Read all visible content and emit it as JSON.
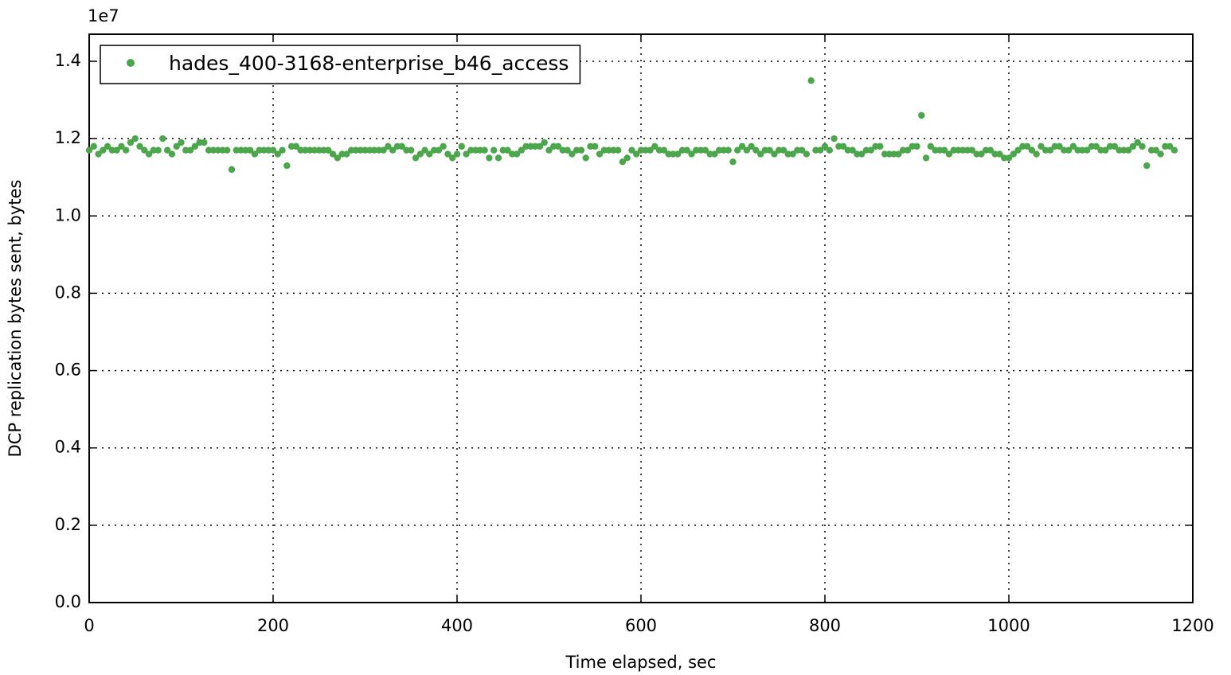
{
  "chart_data": {
    "type": "scatter",
    "x_label": "Time elapsed, sec",
    "y_label": "DCP replication bytes sent, bytes",
    "y_offset_label": "1e7",
    "xlim": [
      0,
      1200
    ],
    "xticks": [
      0,
      200,
      400,
      600,
      800,
      1000,
      1200
    ],
    "ylim": [
      0,
      1.47
    ],
    "yticks": [
      {
        "value": 0,
        "label": "0.0"
      },
      0.2,
      0.4,
      0.6,
      0.8,
      {
        "value": 1,
        "label": "1.0"
      },
      1.2,
      1.4
    ],
    "grid": true,
    "legend": "upper left",
    "series": [
      {
        "name": "hades_400-3168-enterprise_b46_access",
        "color": "#4ca64c",
        "x": [
          0,
          5,
          10,
          15,
          20,
          25,
          30,
          35,
          40,
          45,
          50,
          55,
          60,
          65,
          70,
          75,
          80,
          85,
          90,
          95,
          100,
          105,
          110,
          115,
          120,
          125,
          130,
          135,
          140,
          145,
          150,
          155,
          160,
          165,
          170,
          175,
          180,
          185,
          190,
          195,
          200,
          205,
          210,
          215,
          220,
          225,
          230,
          235,
          240,
          245,
          250,
          255,
          260,
          265,
          270,
          275,
          280,
          285,
          290,
          295,
          300,
          305,
          310,
          315,
          320,
          325,
          330,
          335,
          340,
          345,
          350,
          355,
          360,
          365,
          370,
          375,
          380,
          385,
          390,
          395,
          400,
          405,
          410,
          415,
          420,
          425,
          430,
          435,
          440,
          445,
          450,
          455,
          460,
          465,
          470,
          475,
          480,
          485,
          490,
          495,
          500,
          505,
          510,
          515,
          520,
          525,
          530,
          535,
          540,
          545,
          550,
          555,
          560,
          565,
          570,
          575,
          580,
          585,
          590,
          595,
          600,
          605,
          610,
          615,
          620,
          625,
          630,
          635,
          640,
          645,
          650,
          655,
          660,
          665,
          670,
          675,
          680,
          685,
          690,
          695,
          700,
          705,
          710,
          715,
          720,
          725,
          730,
          735,
          740,
          745,
          750,
          755,
          760,
          765,
          770,
          775,
          780,
          785,
          790,
          795,
          800,
          805,
          810,
          815,
          820,
          825,
          830,
          835,
          840,
          845,
          850,
          855,
          860,
          865,
          870,
          875,
          880,
          885,
          890,
          895,
          900,
          905,
          910,
          915,
          920,
          925,
          930,
          935,
          940,
          945,
          950,
          955,
          960,
          965,
          970,
          975,
          980,
          985,
          990,
          995,
          1000,
          1005,
          1010,
          1015,
          1020,
          1025,
          1030,
          1035,
          1040,
          1045,
          1050,
          1055,
          1060,
          1065,
          1070,
          1075,
          1080,
          1085,
          1090,
          1095,
          1100,
          1105,
          1110,
          1115,
          1120,
          1125,
          1130,
          1135,
          1140,
          1145,
          1150,
          1155,
          1160,
          1165,
          1170,
          1175,
          1180
        ],
        "values": [
          1.17,
          1.18,
          1.16,
          1.17,
          1.18,
          1.17,
          1.17,
          1.18,
          1.17,
          1.19,
          1.2,
          1.18,
          1.17,
          1.16,
          1.17,
          1.17,
          1.2,
          1.17,
          1.16,
          1.18,
          1.19,
          1.17,
          1.17,
          1.18,
          1.19,
          1.19,
          1.17,
          1.17,
          1.17,
          1.17,
          1.17,
          1.12,
          1.17,
          1.17,
          1.17,
          1.17,
          1.16,
          1.17,
          1.17,
          1.17,
          1.17,
          1.16,
          1.17,
          1.13,
          1.18,
          1.18,
          1.17,
          1.17,
          1.17,
          1.17,
          1.17,
          1.17,
          1.17,
          1.16,
          1.15,
          1.16,
          1.16,
          1.17,
          1.17,
          1.17,
          1.17,
          1.17,
          1.17,
          1.17,
          1.17,
          1.18,
          1.17,
          1.18,
          1.18,
          1.17,
          1.17,
          1.15,
          1.16,
          1.17,
          1.16,
          1.17,
          1.17,
          1.18,
          1.16,
          1.15,
          1.16,
          1.18,
          1.16,
          1.17,
          1.17,
          1.17,
          1.17,
          1.15,
          1.17,
          1.15,
          1.17,
          1.17,
          1.16,
          1.16,
          1.17,
          1.18,
          1.18,
          1.18,
          1.18,
          1.19,
          1.17,
          1.18,
          1.18,
          1.17,
          1.17,
          1.16,
          1.17,
          1.17,
          1.15,
          1.18,
          1.18,
          1.16,
          1.17,
          1.17,
          1.17,
          1.17,
          1.14,
          1.15,
          1.17,
          1.16,
          1.17,
          1.17,
          1.17,
          1.18,
          1.17,
          1.17,
          1.16,
          1.16,
          1.16,
          1.17,
          1.17,
          1.16,
          1.17,
          1.17,
          1.17,
          1.16,
          1.16,
          1.17,
          1.17,
          1.17,
          1.14,
          1.17,
          1.18,
          1.17,
          1.18,
          1.17,
          1.16,
          1.17,
          1.17,
          1.16,
          1.17,
          1.17,
          1.16,
          1.16,
          1.17,
          1.17,
          1.16,
          1.35,
          1.17,
          1.17,
          1.18,
          1.17,
          1.2,
          1.18,
          1.18,
          1.17,
          1.17,
          1.16,
          1.16,
          1.17,
          1.17,
          1.18,
          1.18,
          1.16,
          1.16,
          1.16,
          1.16,
          1.17,
          1.17,
          1.18,
          1.18,
          1.26,
          1.15,
          1.18,
          1.17,
          1.17,
          1.17,
          1.16,
          1.17,
          1.17,
          1.17,
          1.17,
          1.17,
          1.16,
          1.16,
          1.17,
          1.17,
          1.16,
          1.16,
          1.15,
          1.15,
          1.16,
          1.17,
          1.18,
          1.18,
          1.17,
          1.16,
          1.18,
          1.17,
          1.17,
          1.18,
          1.18,
          1.17,
          1.17,
          1.18,
          1.17,
          1.17,
          1.17,
          1.18,
          1.18,
          1.17,
          1.17,
          1.18,
          1.18,
          1.17,
          1.17,
          1.17,
          1.18,
          1.19,
          1.18,
          1.13,
          1.17,
          1.17,
          1.16,
          1.18,
          1.18,
          1.17
        ]
      }
    ]
  }
}
